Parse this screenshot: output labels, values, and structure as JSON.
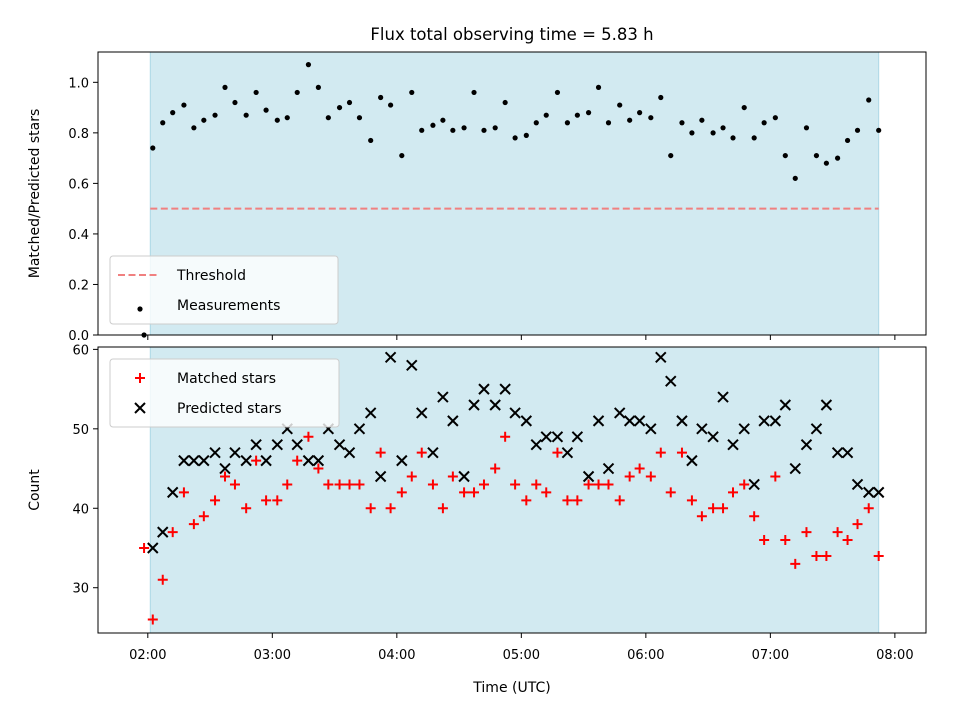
{
  "chart_data": {
    "title": "Flux total observing time = 5.83 h",
    "xlabel": "Time (UTC)",
    "x_ticks": [
      "02:00",
      "03:00",
      "04:00",
      "05:00",
      "06:00",
      "07:00",
      "08:00"
    ],
    "x_range_hours": [
      1.6,
      8.25
    ],
    "observing_window_hours": [
      2.02,
      7.87
    ],
    "colors": {
      "window": "#add8e6",
      "threshold": "#f08080",
      "measurements": "#000000",
      "matched": "#ff0000",
      "predicted": "#000000"
    },
    "panels": [
      {
        "type": "scatter",
        "ylabel": "Matched/Predicted stars",
        "ylim": [
          0,
          1.12
        ],
        "yticks": [
          "0.0",
          "0.2",
          "0.4",
          "0.6",
          "0.8",
          "1.0"
        ],
        "legend_position": "lower-left",
        "threshold": {
          "name": "Threshold",
          "value": 0.5,
          "x_range": [
            2.02,
            7.87
          ]
        },
        "series": [
          {
            "name": "Measurements",
            "marker": "dot",
            "x": [
              1.97,
              2.04,
              2.12,
              2.2,
              2.29,
              2.37,
              2.45,
              2.54,
              2.62,
              2.7,
              2.79,
              2.87,
              2.95,
              3.04,
              3.12,
              3.2,
              3.29,
              3.37,
              3.45,
              3.54,
              3.62,
              3.7,
              3.79,
              3.87,
              3.95,
              4.04,
              4.12,
              4.2,
              4.29,
              4.37,
              4.45,
              4.54,
              4.62,
              4.7,
              4.79,
              4.87,
              4.95,
              5.04,
              5.12,
              5.2,
              5.29,
              5.37,
              5.45,
              5.54,
              5.62,
              5.7,
              5.79,
              5.87,
              5.95,
              6.04,
              6.12,
              6.2,
              6.29,
              6.37,
              6.45,
              6.54,
              6.62,
              6.7,
              6.79,
              6.87,
              6.95,
              7.04,
              7.12,
              7.2,
              7.29,
              7.37,
              7.45,
              7.54,
              7.62,
              7.7,
              7.79,
              7.87
            ],
            "y": [
              0.0,
              0.74,
              0.84,
              0.88,
              0.91,
              0.82,
              0.85,
              0.87,
              0.98,
              0.92,
              0.87,
              0.96,
              0.89,
              0.85,
              0.86,
              0.96,
              1.07,
              0.98,
              0.86,
              0.9,
              0.92,
              0.86,
              0.77,
              0.94,
              0.91,
              0.71,
              0.96,
              0.81,
              0.83,
              0.85,
              0.81,
              0.82,
              0.96,
              0.81,
              0.82,
              0.92,
              0.78,
              0.79,
              0.84,
              0.87,
              0.96,
              0.84,
              0.87,
              0.88,
              0.98,
              0.84,
              0.91,
              0.85,
              0.88,
              0.86,
              0.94,
              0.71,
              0.84,
              0.8,
              0.85,
              0.8,
              0.82,
              0.78,
              0.9,
              0.78,
              0.84,
              0.86,
              0.71,
              0.62,
              0.82,
              0.71,
              0.68,
              0.7,
              0.77,
              0.81,
              0.93,
              0.81
            ]
          }
        ]
      },
      {
        "type": "scatter",
        "ylabel": "Count",
        "ylim": [
          24.3,
          60.3
        ],
        "yticks": [
          "30",
          "40",
          "50",
          "60"
        ],
        "legend_position": "upper-left",
        "series": [
          {
            "name": "Matched stars",
            "marker": "plus",
            "x": [
              1.97,
              2.04,
              2.12,
              2.2,
              2.29,
              2.37,
              2.45,
              2.54,
              2.62,
              2.7,
              2.79,
              2.87,
              2.95,
              3.04,
              3.12,
              3.2,
              3.29,
              3.37,
              3.45,
              3.54,
              3.62,
              3.7,
              3.79,
              3.87,
              3.95,
              4.04,
              4.12,
              4.2,
              4.29,
              4.37,
              4.45,
              4.54,
              4.62,
              4.7,
              4.79,
              4.87,
              4.95,
              5.04,
              5.12,
              5.2,
              5.29,
              5.37,
              5.45,
              5.54,
              5.62,
              5.7,
              5.79,
              5.87,
              5.95,
              6.04,
              6.12,
              6.2,
              6.29,
              6.37,
              6.45,
              6.54,
              6.62,
              6.7,
              6.79,
              6.87,
              6.95,
              7.04,
              7.12,
              7.2,
              7.29,
              7.37,
              7.45,
              7.54,
              7.62,
              7.7,
              7.79,
              7.87
            ],
            "y": [
              35,
              26,
              31,
              37,
              42,
              38,
              39,
              41,
              44,
              43,
              40,
              46,
              41,
              41,
              43,
              46,
              49,
              45,
              43,
              43,
              43,
              43,
              40,
              47,
              40,
              42,
              44,
              47,
              43,
              40,
              44,
              42,
              42,
              43,
              45,
              49,
              43,
              41,
              43,
              42,
              47,
              41,
              41,
              43,
              43,
              43,
              41,
              44,
              45,
              44,
              47,
              42,
              47,
              41,
              39,
              40,
              40,
              42,
              43,
              39,
              36,
              44,
              36,
              33,
              37,
              34,
              34,
              37,
              36,
              38,
              40,
              34
            ]
          },
          {
            "name": "Predicted stars",
            "marker": "x",
            "x": [
              2.04,
              2.12,
              2.2,
              2.29,
              2.37,
              2.45,
              2.54,
              2.62,
              2.7,
              2.79,
              2.87,
              2.95,
              3.04,
              3.12,
              3.2,
              3.29,
              3.37,
              3.45,
              3.54,
              3.62,
              3.7,
              3.79,
              3.87,
              3.95,
              4.04,
              4.12,
              4.2,
              4.29,
              4.37,
              4.45,
              4.54,
              4.62,
              4.7,
              4.79,
              4.87,
              4.95,
              5.04,
              5.12,
              5.2,
              5.29,
              5.37,
              5.45,
              5.54,
              5.62,
              5.7,
              5.79,
              5.87,
              5.95,
              6.04,
              6.12,
              6.2,
              6.29,
              6.37,
              6.45,
              6.54,
              6.62,
              6.7,
              6.79,
              6.87,
              6.95,
              7.04,
              7.12,
              7.2,
              7.29,
              7.37,
              7.45,
              7.54,
              7.62,
              7.7,
              7.79,
              7.87
            ],
            "y": [
              35,
              37,
              42,
              46,
              46,
              46,
              47,
              45,
              47,
              46,
              48,
              46,
              48,
              50,
              48,
              46,
              46,
              50,
              48,
              47,
              50,
              52,
              44,
              59,
              46,
              58,
              52,
              47,
              54,
              51,
              44,
              53,
              55,
              53,
              55,
              52,
              51,
              48,
              49,
              49,
              47,
              49,
              44,
              51,
              45,
              52,
              51,
              51,
              50,
              59,
              56,
              51,
              46,
              50,
              49,
              54,
              48,
              50,
              43,
              51,
              51,
              53,
              45,
              48,
              50,
              53,
              47,
              47,
              43,
              42,
              42
            ]
          }
        ]
      }
    ]
  }
}
